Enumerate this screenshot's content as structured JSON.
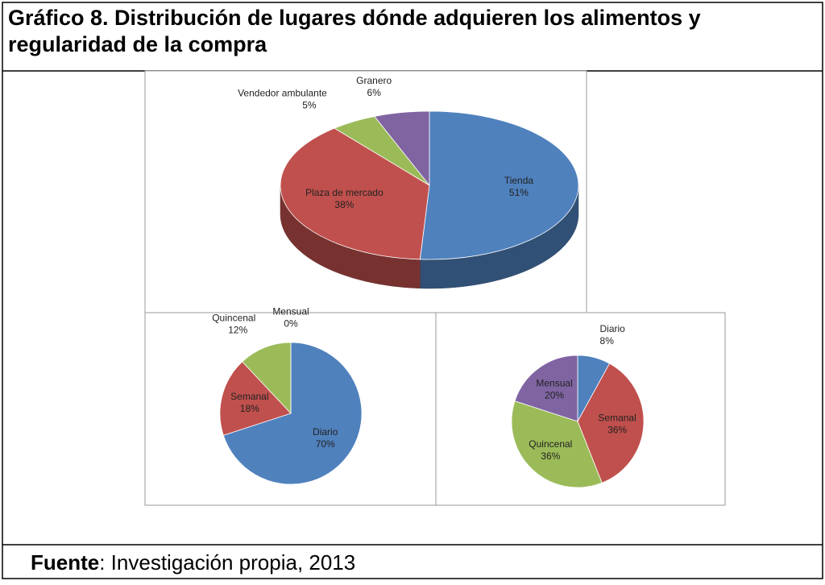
{
  "title": "Gráfico 8. Distribución de lugares dónde adquieren los alimentos y regularidad de la compra",
  "chart_data": [
    {
      "type": "pie3d",
      "categories": [
        "Tienda",
        "Plaza de mercado",
        "Vendedor ambulante",
        "Granero"
      ],
      "values": [
        51,
        38,
        5,
        6
      ],
      "value_labels": [
        "51%",
        "38%",
        "5%",
        "6%"
      ],
      "colors": [
        "#4f81bd",
        "#c0504d",
        "#9bbb59",
        "#8064a2"
      ]
    },
    {
      "type": "pie",
      "categories": [
        "Diario",
        "Semanal",
        "Quincenal",
        "Mensual"
      ],
      "values": [
        70,
        18,
        12,
        0
      ],
      "value_labels": [
        "70%",
        "18%",
        "12%",
        "0%"
      ],
      "colors": [
        "#4f81bd",
        "#c0504d",
        "#9bbb59",
        "#8064a2"
      ]
    },
    {
      "type": "pie",
      "categories": [
        "Diario",
        "Semanal",
        "Quincenal",
        "Mensual"
      ],
      "values": [
        8,
        36,
        36,
        20
      ],
      "value_labels": [
        "8%",
        "36%",
        "36%",
        "20%"
      ],
      "colors": [
        "#4f81bd",
        "#c0504d",
        "#9bbb59",
        "#8064a2"
      ]
    }
  ],
  "source": {
    "label": "Fuente",
    "text": ": Investigación propia, 2013"
  }
}
